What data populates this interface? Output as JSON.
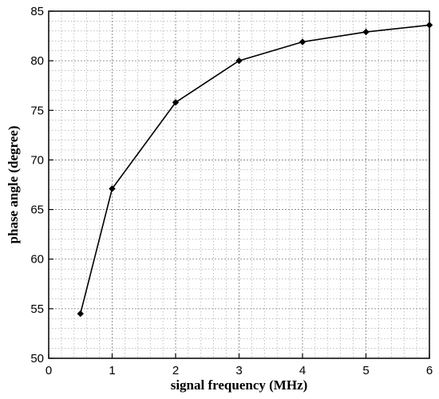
{
  "chart_data": {
    "type": "line",
    "xlabel": "signal frequency (MHz)",
    "ylabel": "phase angle (degree)",
    "xlim": [
      0,
      6
    ],
    "ylim": [
      50,
      85
    ],
    "xticks": [
      "0",
      "1",
      "2",
      "3",
      "4",
      "5",
      "6"
    ],
    "yticks": [
      "50",
      "55",
      "60",
      "65",
      "70",
      "75",
      "80",
      "85"
    ],
    "grid": true,
    "series": [
      {
        "marker": "diamond",
        "color": "#000000",
        "x": [
          0.5,
          1,
          2,
          3,
          4,
          5,
          6
        ],
        "y": [
          54.5,
          67.1,
          75.8,
          80.0,
          81.9,
          82.9,
          83.6
        ]
      }
    ]
  }
}
